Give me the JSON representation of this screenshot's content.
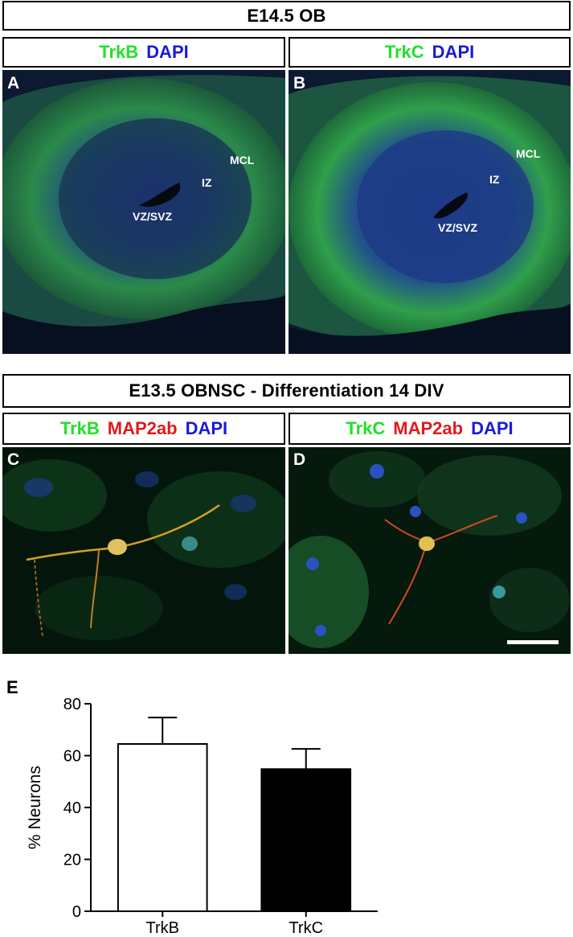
{
  "top": {
    "title": "E14.5 OB",
    "panel_a": {
      "letter": "A",
      "stain_1": "TrkB",
      "stain_2": "DAPI",
      "regions": [
        "MCL",
        "IZ",
        "VZ/SVZ"
      ]
    },
    "panel_b": {
      "letter": "B",
      "stain_1": "TrkC",
      "stain_2": "DAPI",
      "regions": [
        "MCL",
        "IZ",
        "VZ/SVZ"
      ]
    }
  },
  "middle": {
    "title": "E13.5 OBNSC - Differentiation 14 DIV",
    "panel_c": {
      "letter": "C",
      "stain_1": "TrkB",
      "stain_2": "MAP2ab",
      "stain_3": "DAPI"
    },
    "panel_d": {
      "letter": "D",
      "stain_1": "TrkC",
      "stain_2": "MAP2ab",
      "stain_3": "DAPI"
    }
  },
  "colors": {
    "green": "#22e02a",
    "blue": "#1a1ad8",
    "red": "#e01a1a"
  },
  "chart_data": {
    "type": "bar",
    "panel_letter": "E",
    "categories": [
      "TrkB",
      "TrkC"
    ],
    "values": [
      64.5,
      54.8
    ],
    "errors": [
      10.2,
      7.8
    ],
    "bar_fills": [
      "#ffffff",
      "#000000"
    ],
    "title": "",
    "xlabel": "",
    "ylabel": "% Neurons",
    "ylim": [
      0,
      80
    ],
    "yticks": [
      0,
      20,
      40,
      60,
      80
    ],
    "grid": false
  }
}
